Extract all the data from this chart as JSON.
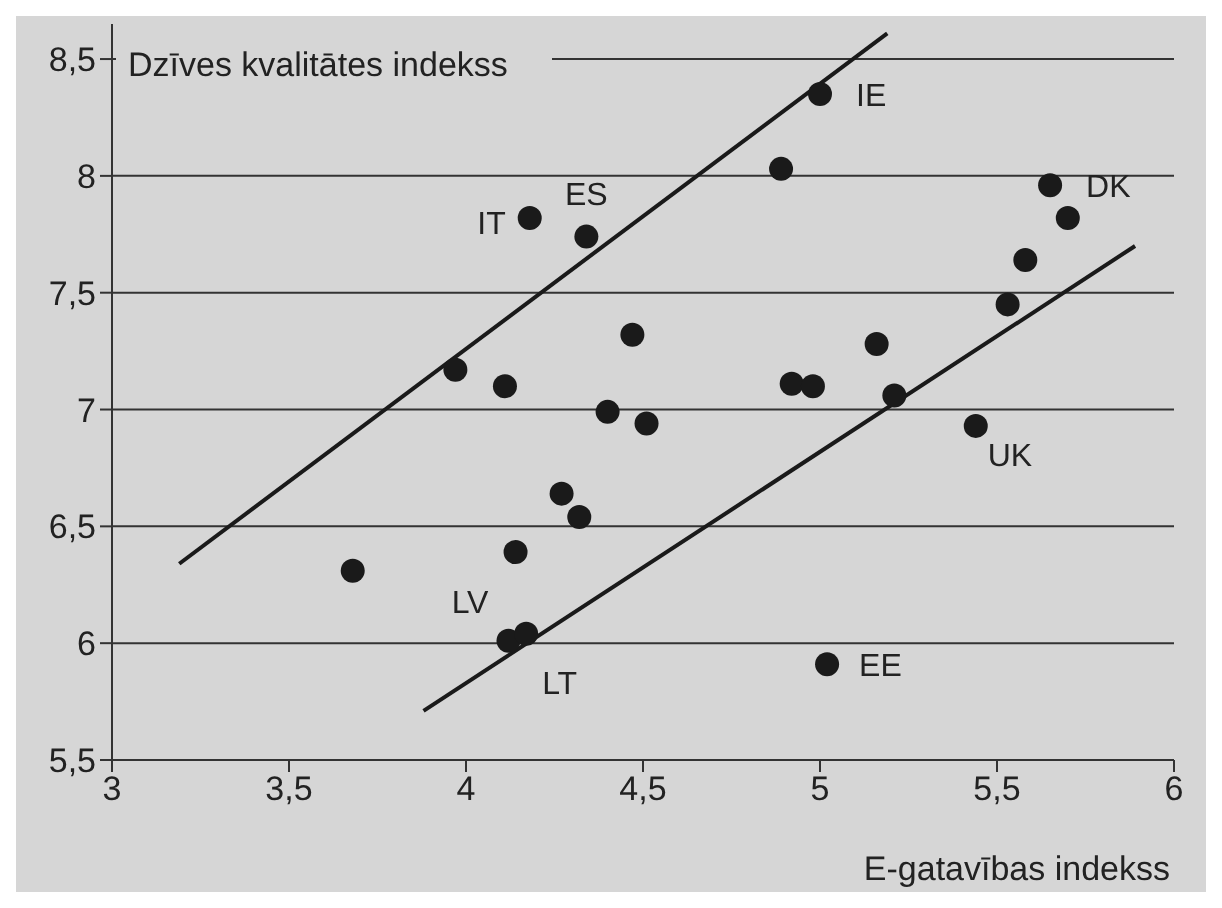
{
  "chart_data": {
    "type": "scatter",
    "xlabel": "E-gatavības indekss",
    "ylabel": "Dzīves kvalitātes indekss",
    "series": [
      {
        "marker": "circle",
        "color": "#1a1a1a",
        "x": [
          5.0,
          4.89,
          4.18,
          4.34,
          5.65,
          5.7,
          5.58,
          5.53,
          4.47,
          3.97,
          4.11,
          5.16,
          4.92,
          4.98,
          5.21,
          4.4,
          4.51,
          5.44,
          4.27,
          4.32,
          4.14,
          3.68,
          4.12,
          4.17,
          5.02
        ],
        "values": [
          8.35,
          8.03,
          7.82,
          7.74,
          7.96,
          7.82,
          7.64,
          7.45,
          7.32,
          7.17,
          7.1,
          7.28,
          7.11,
          7.1,
          7.06,
          6.99,
          6.94,
          6.93,
          6.64,
          6.54,
          6.39,
          6.31,
          6.01,
          6.04,
          5.91
        ]
      },
      {
        "type": "line",
        "marker": "none",
        "color": "#1a1a1a",
        "x": [
          3.19,
          5.19
        ],
        "values": [
          6.34,
          8.61
        ]
      },
      {
        "type": "line",
        "marker": "none",
        "color": "#1a1a1a",
        "x": [
          3.88,
          5.89
        ],
        "values": [
          5.71,
          7.7
        ]
      }
    ],
    "annotations": [
      {
        "text": "IE",
        "x": 5.0,
        "y": 8.35
      },
      {
        "text": "ES",
        "x": 4.34,
        "y": 7.74
      },
      {
        "text": "IT",
        "x": 4.18,
        "y": 7.82
      },
      {
        "text": "DK",
        "x": 5.65,
        "y": 7.96
      },
      {
        "text": "UK",
        "x": 5.44,
        "y": 6.93
      },
      {
        "text": "LV",
        "x": 4.12,
        "y": 6.01
      },
      {
        "text": "LT",
        "x": 4.17,
        "y": 6.04
      },
      {
        "text": "EE",
        "x": 5.02,
        "y": 5.91
      }
    ],
    "xlim": [
      3,
      6
    ],
    "ylim": [
      5.5,
      8.65
    ],
    "xticks": [
      3,
      {
        "value": 3.5,
        "label": "3,5"
      },
      4,
      {
        "value": 4.5,
        "label": "4,5"
      },
      5,
      {
        "value": 5.5,
        "label": "5,5"
      },
      6
    ],
    "yticks": [
      {
        "value": 5.5,
        "label": "5,5"
      },
      6,
      {
        "value": 6.5,
        "label": "6,5"
      },
      7,
      {
        "value": 7.5,
        "label": "7,5"
      },
      8,
      {
        "value": 8.5,
        "label": "8,5"
      }
    ],
    "grid": "y"
  }
}
